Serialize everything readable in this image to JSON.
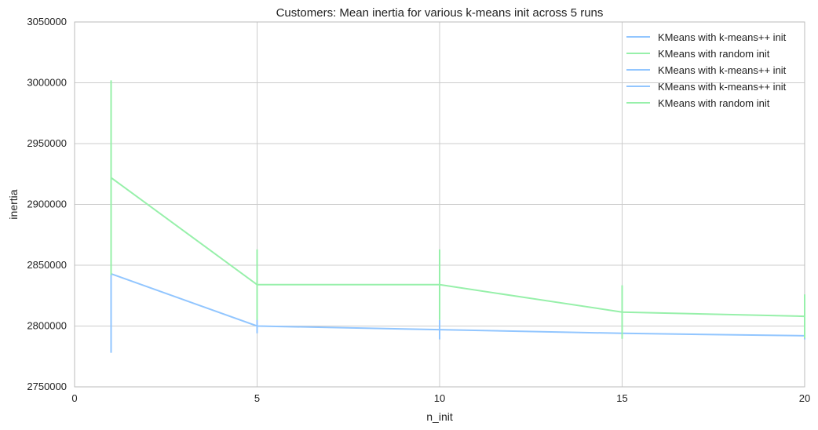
{
  "chart_data": {
    "type": "line",
    "title": "Customers: Mean inertia for various k-means init across 5 runs",
    "xlabel": "n_init",
    "ylabel": "inertia",
    "xlim": [
      0,
      20
    ],
    "ylim": [
      2750000,
      3050000
    ],
    "xticks": [
      0,
      5,
      10,
      15,
      20
    ],
    "yticks": [
      2750000,
      2800000,
      2850000,
      2900000,
      2950000,
      3000000,
      3050000
    ],
    "grid": true,
    "legend_position": "top-right",
    "series": [
      {
        "name": "KMeans with k-means++ init",
        "color": "#92c6ff",
        "x": [
          1,
          5,
          10,
          15,
          20
        ],
        "y": [
          2843000,
          2800000,
          2797000,
          2794000,
          2792000
        ],
        "yerr": [
          65000,
          6000,
          8000,
          3000,
          3000
        ]
      },
      {
        "name": "KMeans with random init",
        "color": "#97f0aa",
        "x": [
          1,
          5,
          10,
          15,
          20
        ],
        "y": [
          2922000,
          2834000,
          2834000,
          2811500,
          2808000
        ],
        "yerr": [
          80000,
          29000,
          29000,
          22000,
          18000
        ]
      }
    ],
    "legend": [
      {
        "label": "KMeans with k-means++ init",
        "color": "#92c6ff"
      },
      {
        "label": "KMeans with random init",
        "color": "#97f0aa"
      },
      {
        "label": "KMeans with k-means++ init",
        "color": "#92c6ff"
      },
      {
        "label": "KMeans with k-means++ init",
        "color": "#92c6ff"
      },
      {
        "label": "KMeans with random init",
        "color": "#97f0aa"
      }
    ],
    "grid_color": "#cccccc",
    "frame_color": "#bbbbbb"
  }
}
